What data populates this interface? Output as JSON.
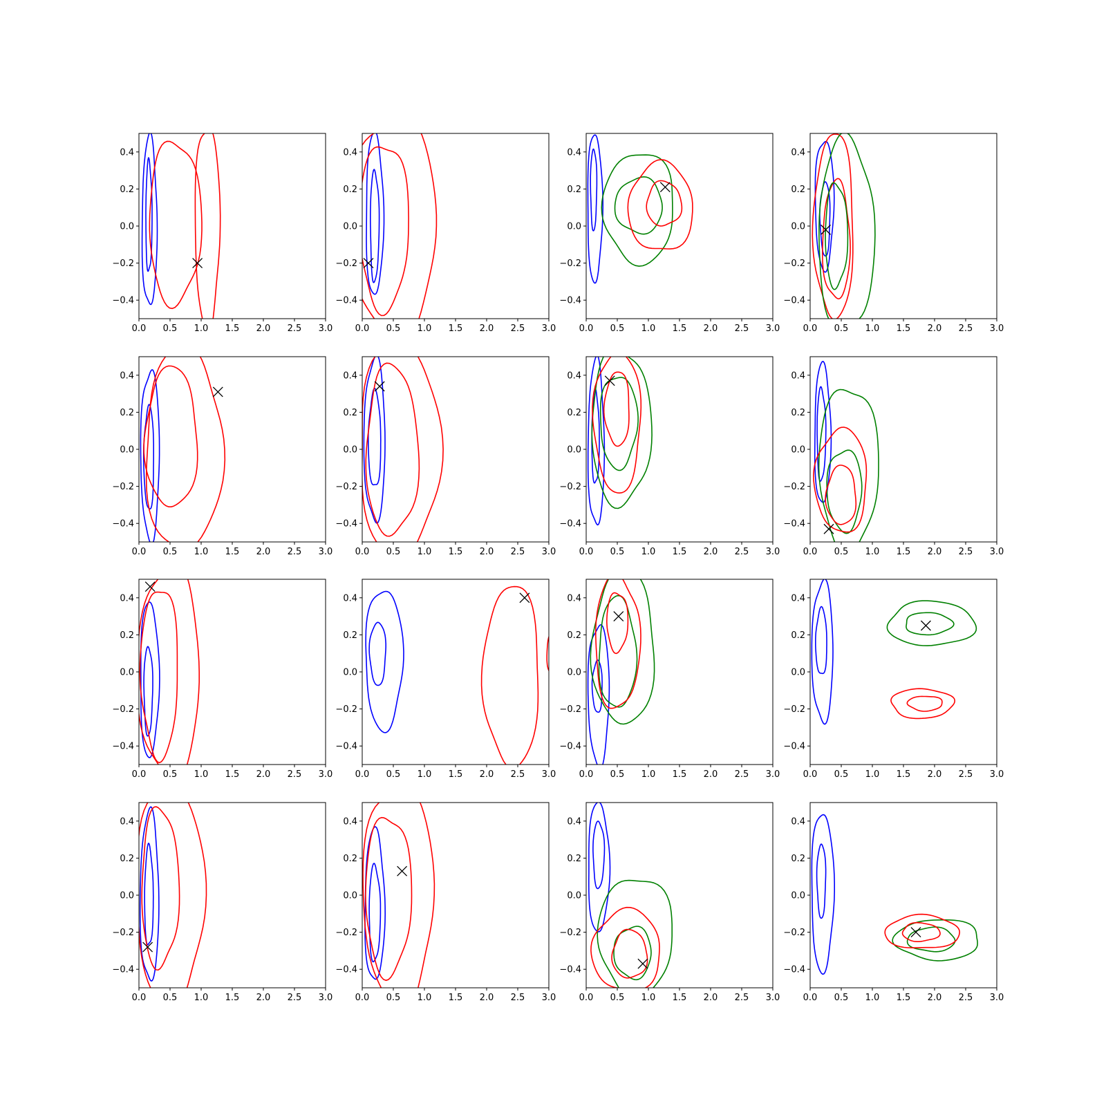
{
  "figure": {
    "grid_rows": 4,
    "grid_cols": 4,
    "colors": {
      "blue": "#0000ff",
      "red": "#ff0000",
      "green": "#008000",
      "marker": "#000000"
    }
  },
  "chart_data": [
    {
      "type": "contour",
      "row": 0,
      "col": 0,
      "xlim": [
        0,
        3
      ],
      "ylim": [
        -0.5,
        0.5
      ],
      "xticks": [
        "0.0",
        "0.5",
        "1.0",
        "1.5",
        "2.0",
        "2.5",
        "3.0"
      ],
      "yticks": [
        "−0.4",
        "−0.2",
        "0.0",
        "0.2",
        "0.4"
      ],
      "marker": [
        0.94,
        -0.2
      ],
      "contours": [
        {
          "color": "blue",
          "cx": 0.17,
          "cy": 0.02,
          "rx": 0.12,
          "ry": 0.46
        },
        {
          "color": "blue",
          "cx": 0.16,
          "cy": 0.05,
          "rx": 0.05,
          "ry": 0.3
        },
        {
          "color": "red",
          "cx": 0.58,
          "cy": 0.02,
          "rx": 0.42,
          "ry": 0.44
        },
        {
          "color": "red",
          "cx": 1.1,
          "cy": 0.0,
          "rx": 0.2,
          "ry": 0.55
        }
      ]
    },
    {
      "type": "contour",
      "row": 0,
      "col": 1,
      "xlim": [
        0,
        3
      ],
      "ylim": [
        -0.5,
        0.5
      ],
      "xticks": [
        "0.0",
        "0.5",
        "1.0",
        "1.5",
        "2.0",
        "2.5",
        "3.0"
      ],
      "yticks": [
        "−0.4",
        "−0.2",
        "0.0",
        "0.2",
        "0.4"
      ],
      "marker": [
        0.1,
        -0.2
      ],
      "contours": [
        {
          "color": "blue",
          "cx": 0.2,
          "cy": 0.06,
          "rx": 0.14,
          "ry": 0.44
        },
        {
          "color": "blue",
          "cx": 0.2,
          "cy": 0.0,
          "rx": 0.07,
          "ry": 0.3
        },
        {
          "color": "red",
          "cx": 0.35,
          "cy": 0.0,
          "rx": 0.4,
          "ry": 0.45
        },
        {
          "color": "red",
          "cx": 0.5,
          "cy": 0.0,
          "rx": 0.7,
          "ry": 0.6
        }
      ]
    },
    {
      "type": "contour",
      "row": 0,
      "col": 2,
      "xlim": [
        0,
        3
      ],
      "ylim": [
        -0.5,
        0.5
      ],
      "xticks": [
        "0.0",
        "0.5",
        "1.0",
        "1.5",
        "2.0",
        "2.5",
        "3.0"
      ],
      "yticks": [
        "−0.4",
        "−0.2",
        "0.0",
        "0.2",
        "0.4"
      ],
      "marker": [
        1.27,
        0.21
      ],
      "contours": [
        {
          "color": "blue",
          "cx": 0.14,
          "cy": 0.1,
          "rx": 0.12,
          "ry": 0.4
        },
        {
          "color": "blue",
          "cx": 0.12,
          "cy": 0.2,
          "rx": 0.05,
          "ry": 0.22
        },
        {
          "color": "green",
          "cx": 0.85,
          "cy": 0.1,
          "rx": 0.57,
          "ry": 0.3
        },
        {
          "color": "green",
          "cx": 0.85,
          "cy": 0.11,
          "rx": 0.38,
          "ry": 0.15
        },
        {
          "color": "red",
          "cx": 1.2,
          "cy": 0.1,
          "rx": 0.52,
          "ry": 0.24
        },
        {
          "color": "red",
          "cx": 1.25,
          "cy": 0.12,
          "rx": 0.28,
          "ry": 0.12
        }
      ]
    },
    {
      "type": "contour",
      "row": 0,
      "col": 3,
      "xlim": [
        0,
        3
      ],
      "ylim": [
        -0.5,
        0.5
      ],
      "xticks": [
        "0.0",
        "0.5",
        "1.0",
        "1.5",
        "2.0",
        "2.5",
        "3.0"
      ],
      "yticks": [
        "−0.4",
        "−0.2",
        "0.0",
        "0.2",
        "0.4"
      ],
      "marker": [
        0.25,
        -0.02
      ],
      "contours": [
        {
          "color": "blue",
          "cx": 0.23,
          "cy": 0.12,
          "rx": 0.15,
          "ry": 0.35
        },
        {
          "color": "blue",
          "cx": 0.24,
          "cy": 0.04,
          "rx": 0.08,
          "ry": 0.2
        },
        {
          "color": "red",
          "cx": 0.38,
          "cy": 0.0,
          "rx": 0.32,
          "ry": 0.5
        },
        {
          "color": "red",
          "cx": 0.42,
          "cy": -0.08,
          "rx": 0.22,
          "ry": 0.32
        },
        {
          "color": "green",
          "cx": 0.58,
          "cy": -0.05,
          "rx": 0.45,
          "ry": 0.52
        },
        {
          "color": "green",
          "cx": 0.42,
          "cy": -0.05,
          "rx": 0.18,
          "ry": 0.28
        }
      ]
    },
    {
      "type": "contour",
      "row": 1,
      "col": 0,
      "xlim": [
        0,
        3
      ],
      "ylim": [
        -0.5,
        0.5
      ],
      "xticks": [
        "0.0",
        "0.5",
        "1.0",
        "1.5",
        "2.0",
        "2.5",
        "3.0"
      ],
      "yticks": [
        "−0.4",
        "−0.2",
        "0.0",
        "0.2",
        "0.4"
      ],
      "marker": [
        1.27,
        0.31
      ],
      "contours": [
        {
          "color": "blue",
          "cx": 0.18,
          "cy": -0.03,
          "rx": 0.15,
          "ry": 0.46
        },
        {
          "color": "blue",
          "cx": 0.16,
          "cy": -0.05,
          "rx": 0.08,
          "ry": 0.28
        },
        {
          "color": "red",
          "cx": 0.52,
          "cy": 0.06,
          "rx": 0.42,
          "ry": 0.38
        },
        {
          "color": "red",
          "cx": 0.72,
          "cy": 0.0,
          "rx": 0.62,
          "ry": 0.55
        }
      ]
    },
    {
      "type": "contour",
      "row": 1,
      "col": 1,
      "xlim": [
        0,
        3
      ],
      "ylim": [
        -0.5,
        0.5
      ],
      "xticks": [
        "0.0",
        "0.5",
        "1.0",
        "1.5",
        "2.0",
        "2.5",
        "3.0"
      ],
      "yticks": [
        "−0.4",
        "−0.2",
        "0.0",
        "0.2",
        "0.4"
      ],
      "marker": [
        0.28,
        0.34
      ],
      "contours": [
        {
          "color": "blue",
          "cx": 0.2,
          "cy": 0.05,
          "rx": 0.17,
          "ry": 0.44
        },
        {
          "color": "blue",
          "cx": 0.2,
          "cy": 0.05,
          "rx": 0.1,
          "ry": 0.26
        },
        {
          "color": "red",
          "cx": 0.48,
          "cy": -0.01,
          "rx": 0.42,
          "ry": 0.46
        },
        {
          "color": "red",
          "cx": 0.6,
          "cy": 0.0,
          "rx": 0.65,
          "ry": 0.58
        }
      ]
    },
    {
      "type": "contour",
      "row": 1,
      "col": 2,
      "xlim": [
        0,
        3
      ],
      "ylim": [
        -0.5,
        0.5
      ],
      "xticks": [
        "0.0",
        "0.5",
        "1.0",
        "1.5",
        "2.0",
        "2.5",
        "3.0"
      ],
      "yticks": [
        "−0.4",
        "−0.2",
        "0.0",
        "0.2",
        "0.4"
      ],
      "marker": [
        0.38,
        0.37
      ],
      "contours": [
        {
          "color": "blue",
          "cx": 0.16,
          "cy": 0.03,
          "rx": 0.13,
          "ry": 0.45
        },
        {
          "color": "blue",
          "cx": 0.15,
          "cy": 0.06,
          "rx": 0.06,
          "ry": 0.25
        },
        {
          "color": "green",
          "cx": 0.56,
          "cy": 0.12,
          "rx": 0.48,
          "ry": 0.42
        },
        {
          "color": "green",
          "cx": 0.52,
          "cy": 0.15,
          "rx": 0.3,
          "ry": 0.25
        },
        {
          "color": "red",
          "cx": 0.5,
          "cy": 0.15,
          "rx": 0.38,
          "ry": 0.38
        },
        {
          "color": "red",
          "cx": 0.5,
          "cy": 0.22,
          "rx": 0.2,
          "ry": 0.2
        }
      ]
    },
    {
      "type": "contour",
      "row": 1,
      "col": 3,
      "xlim": [
        0,
        3
      ],
      "ylim": [
        -0.5,
        0.5
      ],
      "xticks": [
        "0.0",
        "0.5",
        "1.0",
        "1.5",
        "2.0",
        "2.5",
        "3.0"
      ],
      "yticks": [
        "−0.4",
        "−0.2",
        "0.0",
        "0.2",
        "0.4"
      ],
      "marker": [
        0.3,
        -0.43
      ],
      "contours": [
        {
          "color": "blue",
          "cx": 0.2,
          "cy": 0.08,
          "rx": 0.13,
          "ry": 0.38
        },
        {
          "color": "blue",
          "cx": 0.18,
          "cy": 0.08,
          "rx": 0.07,
          "ry": 0.25
        },
        {
          "color": "green",
          "cx": 0.62,
          "cy": -0.1,
          "rx": 0.48,
          "ry": 0.44
        },
        {
          "color": "green",
          "cx": 0.55,
          "cy": -0.22,
          "rx": 0.28,
          "ry": 0.22
        },
        {
          "color": "red",
          "cx": 0.5,
          "cy": -0.17,
          "rx": 0.42,
          "ry": 0.28
        },
        {
          "color": "red",
          "cx": 0.5,
          "cy": -0.25,
          "rx": 0.24,
          "ry": 0.16
        }
      ]
    },
    {
      "type": "contour",
      "row": 2,
      "col": 0,
      "xlim": [
        0,
        3
      ],
      "ylim": [
        -0.5,
        0.5
      ],
      "xticks": [
        "0.0",
        "0.5",
        "1.0",
        "1.5",
        "2.0",
        "2.5",
        "3.0"
      ],
      "yticks": [
        "−0.4",
        "−0.2",
        "0.0",
        "0.2",
        "0.4"
      ],
      "marker": [
        0.18,
        0.46
      ],
      "contours": [
        {
          "color": "blue",
          "cx": 0.17,
          "cy": -0.04,
          "rx": 0.15,
          "ry": 0.42
        },
        {
          "color": "blue",
          "cx": 0.15,
          "cy": -0.1,
          "rx": 0.07,
          "ry": 0.24
        },
        {
          "color": "red",
          "cx": 0.33,
          "cy": 0.0,
          "rx": 0.3,
          "ry": 0.46
        },
        {
          "color": "red",
          "cx": 0.48,
          "cy": 0.0,
          "rx": 0.5,
          "ry": 0.58
        }
      ]
    },
    {
      "type": "contour",
      "row": 2,
      "col": 1,
      "xlim": [
        0,
        3
      ],
      "ylim": [
        -0.5,
        0.5
      ],
      "xticks": [
        "0.0",
        "0.5",
        "1.0",
        "1.5",
        "2.0",
        "2.5",
        "3.0"
      ],
      "yticks": [
        "−0.4",
        "−0.2",
        "0.0",
        "0.2",
        "0.4"
      ],
      "marker": [
        2.61,
        0.4
      ],
      "contours": [
        {
          "color": "blue",
          "cx": 0.35,
          "cy": 0.07,
          "rx": 0.3,
          "ry": 0.38
        },
        {
          "color": "blue",
          "cx": 0.25,
          "cy": 0.1,
          "rx": 0.13,
          "ry": 0.17
        },
        {
          "color": "red",
          "cx": 2.4,
          "cy": -0.02,
          "rx": 0.45,
          "ry": 0.49
        },
        {
          "color": "red",
          "cx": 3.05,
          "cy": 0.1,
          "rx": 0.08,
          "ry": 0.12
        }
      ]
    },
    {
      "type": "contour",
      "row": 2,
      "col": 2,
      "xlim": [
        0,
        3
      ],
      "ylim": [
        -0.5,
        0.5
      ],
      "xticks": [
        "0.0",
        "0.5",
        "1.0",
        "1.5",
        "2.0",
        "2.5",
        "3.0"
      ],
      "yticks": [
        "−0.4",
        "−0.2",
        "0.0",
        "0.2",
        "0.4"
      ],
      "marker": [
        0.52,
        0.3
      ],
      "contours": [
        {
          "color": "blue",
          "cx": 0.2,
          "cy": -0.12,
          "rx": 0.17,
          "ry": 0.38
        },
        {
          "color": "blue",
          "cx": 0.18,
          "cy": -0.08,
          "rx": 0.08,
          "ry": 0.14
        },
        {
          "color": "green",
          "cx": 0.6,
          "cy": 0.13,
          "rx": 0.5,
          "ry": 0.42
        },
        {
          "color": "green",
          "cx": 0.5,
          "cy": 0.1,
          "rx": 0.3,
          "ry": 0.3
        },
        {
          "color": "red",
          "cx": 0.5,
          "cy": 0.16,
          "rx": 0.36,
          "ry": 0.36
        },
        {
          "color": "red",
          "cx": 0.5,
          "cy": 0.27,
          "rx": 0.17,
          "ry": 0.16
        }
      ]
    },
    {
      "type": "contour",
      "row": 2,
      "col": 3,
      "xlim": [
        0,
        3
      ],
      "ylim": [
        -0.5,
        0.5
      ],
      "xticks": [
        "0.0",
        "0.5",
        "1.0",
        "1.5",
        "2.0",
        "2.5",
        "3.0"
      ],
      "yticks": [
        "−0.4",
        "−0.2",
        "0.0",
        "0.2",
        "0.4"
      ],
      "marker": [
        1.86,
        0.25
      ],
      "contours": [
        {
          "color": "blue",
          "cx": 0.2,
          "cy": 0.11,
          "rx": 0.17,
          "ry": 0.38
        },
        {
          "color": "blue",
          "cx": 0.18,
          "cy": 0.16,
          "rx": 0.09,
          "ry": 0.18
        },
        {
          "color": "green",
          "cx": 1.95,
          "cy": 0.26,
          "rx": 0.7,
          "ry": 0.12
        },
        {
          "color": "green",
          "cx": 1.9,
          "cy": 0.26,
          "rx": 0.38,
          "ry": 0.06
        },
        {
          "color": "red",
          "cx": 1.8,
          "cy": -0.17,
          "rx": 0.5,
          "ry": 0.08
        },
        {
          "color": "red",
          "cx": 1.85,
          "cy": -0.17,
          "rx": 0.28,
          "ry": 0.04
        }
      ]
    },
    {
      "type": "contour",
      "row": 3,
      "col": 0,
      "xlim": [
        0,
        3
      ],
      "ylim": [
        -0.5,
        0.5
      ],
      "xticks": [
        "0.0",
        "0.5",
        "1.0",
        "1.5",
        "2.0",
        "2.5",
        "3.0"
      ],
      "yticks": [
        "−0.4",
        "−0.2",
        "0.0",
        "0.2",
        "0.4"
      ],
      "marker": [
        0.14,
        -0.28
      ],
      "contours": [
        {
          "color": "blue",
          "cx": 0.17,
          "cy": -0.01,
          "rx": 0.15,
          "ry": 0.46
        },
        {
          "color": "blue",
          "cx": 0.16,
          "cy": -0.01,
          "rx": 0.07,
          "ry": 0.27
        },
        {
          "color": "red",
          "cx": 0.34,
          "cy": 0.04,
          "rx": 0.3,
          "ry": 0.43
        },
        {
          "color": "red",
          "cx": 0.5,
          "cy": 0.0,
          "rx": 0.55,
          "ry": 0.6
        }
      ]
    },
    {
      "type": "contour",
      "row": 3,
      "col": 1,
      "xlim": [
        0,
        3
      ],
      "ylim": [
        -0.5,
        0.5
      ],
      "xticks": [
        "0.0",
        "0.5",
        "1.0",
        "1.5",
        "2.0",
        "2.5",
        "3.0"
      ],
      "yticks": [
        "−0.4",
        "−0.2",
        "0.0",
        "0.2",
        "0.4"
      ],
      "marker": [
        0.64,
        0.13
      ],
      "contours": [
        {
          "color": "blue",
          "cx": 0.2,
          "cy": -0.06,
          "rx": 0.16,
          "ry": 0.41
        },
        {
          "color": "blue",
          "cx": 0.2,
          "cy": -0.1,
          "rx": 0.09,
          "ry": 0.26
        },
        {
          "color": "red",
          "cx": 0.42,
          "cy": 0.0,
          "rx": 0.37,
          "ry": 0.43
        },
        {
          "color": "red",
          "cx": 0.58,
          "cy": 0.0,
          "rx": 0.57,
          "ry": 0.6
        }
      ]
    },
    {
      "type": "contour",
      "row": 3,
      "col": 2,
      "xlim": [
        0,
        3
      ],
      "ylim": [
        -0.5,
        0.5
      ],
      "xticks": [
        "0.0",
        "0.5",
        "1.0",
        "1.5",
        "2.0",
        "2.5",
        "3.0"
      ],
      "yticks": [
        "−0.4",
        "−0.2",
        "0.0",
        "0.2",
        "0.4"
      ],
      "marker": [
        0.91,
        -0.37
      ],
      "contours": [
        {
          "color": "blue",
          "cx": 0.2,
          "cy": 0.15,
          "rx": 0.17,
          "ry": 0.35
        },
        {
          "color": "blue",
          "cx": 0.2,
          "cy": 0.22,
          "rx": 0.09,
          "ry": 0.18
        },
        {
          "color": "green",
          "cx": 0.8,
          "cy": -0.22,
          "rx": 0.6,
          "ry": 0.32
        },
        {
          "color": "green",
          "cx": 0.75,
          "cy": -0.31,
          "rx": 0.3,
          "ry": 0.14
        },
        {
          "color": "red",
          "cx": 0.65,
          "cy": -0.3,
          "rx": 0.55,
          "ry": 0.22
        },
        {
          "color": "red",
          "cx": 0.7,
          "cy": -0.32,
          "rx": 0.28,
          "ry": 0.13
        }
      ]
    },
    {
      "type": "contour",
      "row": 3,
      "col": 3,
      "xlim": [
        0,
        3
      ],
      "ylim": [
        -0.5,
        0.5
      ],
      "xticks": [
        "0.0",
        "0.5",
        "1.0",
        "1.5",
        "2.0",
        "2.5",
        "3.0"
      ],
      "yticks": [
        "−0.4",
        "−0.2",
        "0.0",
        "0.2",
        "0.4"
      ],
      "marker": [
        1.7,
        -0.2
      ],
      "contours": [
        {
          "color": "blue",
          "cx": 0.2,
          "cy": 0.02,
          "rx": 0.18,
          "ry": 0.43
        },
        {
          "color": "blue",
          "cx": 0.18,
          "cy": 0.08,
          "rx": 0.07,
          "ry": 0.2
        },
        {
          "color": "green",
          "cx": 2.05,
          "cy": -0.24,
          "rx": 0.68,
          "ry": 0.11
        },
        {
          "color": "green",
          "cx": 1.95,
          "cy": -0.24,
          "rx": 0.38,
          "ry": 0.065
        },
        {
          "color": "red",
          "cx": 1.8,
          "cy": -0.2,
          "rx": 0.6,
          "ry": 0.09
        },
        {
          "color": "red",
          "cx": 1.78,
          "cy": -0.2,
          "rx": 0.3,
          "ry": 0.05
        }
      ]
    }
  ]
}
